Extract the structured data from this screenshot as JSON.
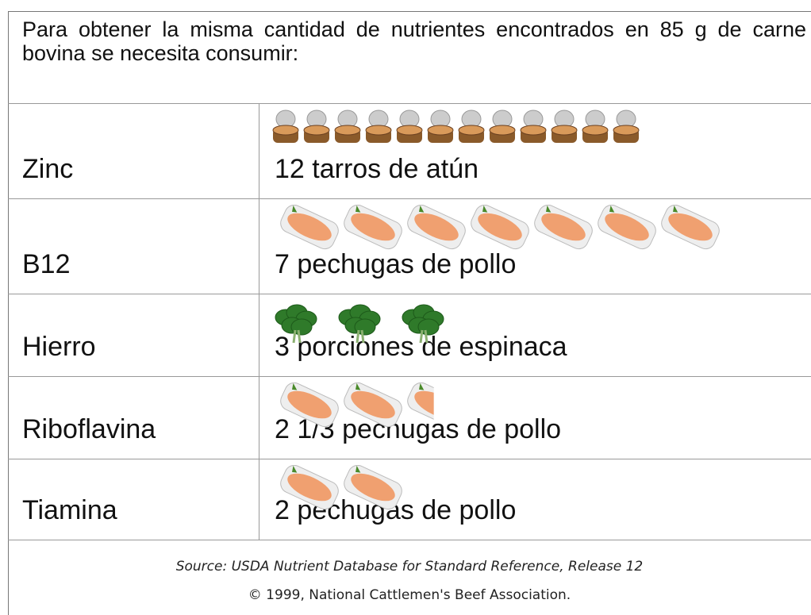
{
  "header": {
    "title": "Para obtener la misma cantidad de nutrientes encontrados en 85 g de carne bovina se necesita consumir:"
  },
  "table": {
    "rows": [
      {
        "nutrient": "Zinc",
        "amount": "12 tarros de atún",
        "icon": "tuna",
        "icons": 12
      },
      {
        "nutrient": "B12",
        "amount": "7 pechugas de pollo",
        "icon": "chicken",
        "icons": 7
      },
      {
        "nutrient": "Hierro",
        "amount": "3 porciones de espinaca",
        "icon": "spinach",
        "icons": 3
      },
      {
        "nutrient": "Riboflavina",
        "amount": "2 1/3 pechugas de pollo",
        "icon": "chicken",
        "icons": 2.333
      },
      {
        "nutrient": "Tiamina",
        "amount": "2 pechugas de pollo",
        "icon": "chicken",
        "icons": 2
      }
    ]
  },
  "footer": {
    "source": "Source: USDA Nutrient Database for Standard Reference, Release 12",
    "copyright": "© 1999, National Cattlemen's Beef Association."
  }
}
